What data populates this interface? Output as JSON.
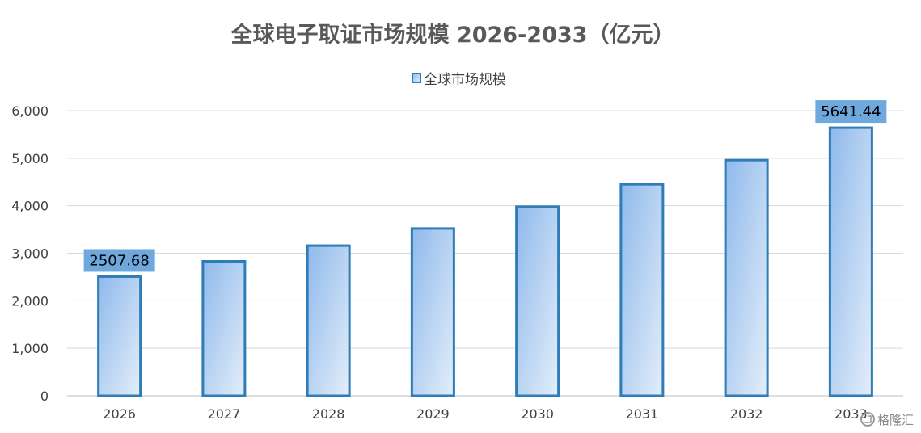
{
  "chart_data": {
    "type": "bar",
    "title": "全球电子取证市场规模 2026-2033（亿元）",
    "xlabel": "",
    "ylabel": "",
    "categories": [
      "2026",
      "2027",
      "2028",
      "2029",
      "2030",
      "2031",
      "2032",
      "2033"
    ],
    "series": [
      {
        "name": "全球市场规模",
        "values": [
          2507.68,
          2830,
          3160,
          3520,
          3980,
          4450,
          4960,
          5641.44
        ]
      }
    ],
    "ylim": [
      0,
      6000
    ],
    "yticks": [
      "0",
      "1,000",
      "2,000",
      "3,000",
      "4,000",
      "5,000",
      "6,000"
    ],
    "ytick_values": [
      0,
      1000,
      2000,
      3000,
      4000,
      5000,
      6000
    ],
    "data_labels": [
      {
        "index": 0,
        "text": "2507.68"
      },
      {
        "index": 7,
        "text": "5641.44"
      }
    ],
    "grid": true,
    "legend_position": "top-center",
    "colors": {
      "bar_fill_top": "#8fb9eb",
      "bar_fill_bottom": "#dce9f8",
      "bar_stroke": "#2e7cb8",
      "label_bg": "#6fa8dc"
    }
  },
  "watermark": {
    "text": "格隆汇",
    "icon": "glh-logo-icon"
  }
}
